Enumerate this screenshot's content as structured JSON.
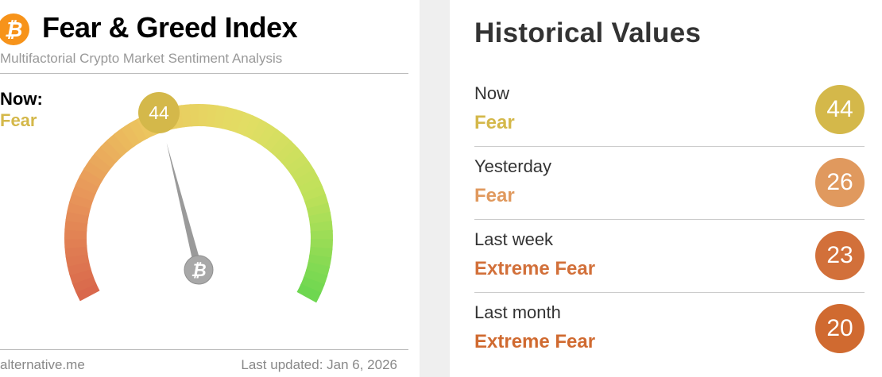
{
  "header": {
    "logo_icon": "bitcoin-icon",
    "title": "Fear & Greed Index",
    "subtitle": "Multifactorial Crypto Market Sentiment Analysis"
  },
  "gauge": {
    "now_label": "Now:",
    "classification": "Fear",
    "value": "44",
    "value_num": 44,
    "min": 0,
    "max": 100,
    "color": "#d4b84a",
    "hub_icon": "bitcoin-icon"
  },
  "footer": {
    "source": "alternative.me",
    "updated": "Last updated: Jan 6, 2026"
  },
  "history": {
    "title": "Historical Values",
    "rows": [
      {
        "label": "Now",
        "classification": "Fear",
        "value": "44",
        "color": "#d4b84a"
      },
      {
        "label": "Yesterday",
        "classification": "Fear",
        "value": "26",
        "color": "#e0995e"
      },
      {
        "label": "Last week",
        "classification": "Extreme Fear",
        "value": "23",
        "color": "#d2703a"
      },
      {
        "label": "Last month",
        "classification": "Extreme Fear",
        "value": "20",
        "color": "#d06a30"
      }
    ]
  }
}
